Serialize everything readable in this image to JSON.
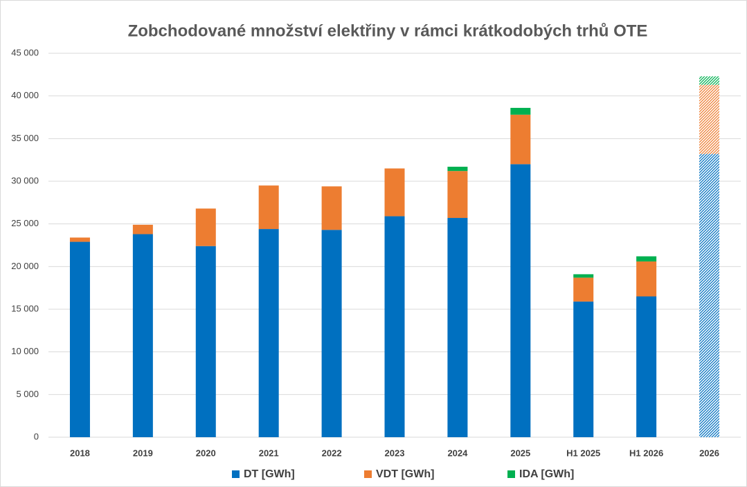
{
  "chart_data": {
    "type": "stacked_bar",
    "title": "Zobchodované množství elektřiny v rámci krátkodobých trhů OTE",
    "categories": [
      "2018",
      "2019",
      "2020",
      "2021",
      "2022",
      "2023",
      "2024",
      "2025",
      "H1 2025",
      "H1 2026",
      "2026"
    ],
    "hatched": [
      false,
      false,
      false,
      false,
      false,
      false,
      false,
      false,
      false,
      false,
      true
    ],
    "series": [
      {
        "name": "DT [GWh]",
        "color": "#0070C0",
        "values": [
          22900,
          23800,
          22400,
          24400,
          24300,
          25900,
          25700,
          32000,
          15900,
          16500,
          33200
        ]
      },
      {
        "name": "VDT [GWh]",
        "color": "#ED7D31",
        "values": [
          500,
          1100,
          4400,
          5100,
          5100,
          5600,
          5500,
          5800,
          2800,
          4100,
          8100
        ]
      },
      {
        "name": "IDA [GWh]",
        "color": "#00B050",
        "values": [
          0,
          0,
          0,
          0,
          0,
          0,
          500,
          800,
          400,
          600,
          1000
        ]
      }
    ],
    "ylim": [
      0,
      45000
    ],
    "yticks": [
      0,
      {
        "value": 5000,
        "label": "5 000"
      },
      {
        "value": 10000,
        "label": "10 000"
      },
      {
        "value": 15000,
        "label": "15 000"
      },
      {
        "value": 20000,
        "label": "20 000"
      },
      {
        "value": 25000,
        "label": "25 000"
      },
      {
        "value": 30000,
        "label": "30 000"
      },
      {
        "value": 35000,
        "label": "35 000"
      },
      {
        "value": 40000,
        "label": "40 000"
      },
      {
        "value": 45000,
        "label": "45 000"
      }
    ],
    "grid": true,
    "legend": "bottom"
  }
}
